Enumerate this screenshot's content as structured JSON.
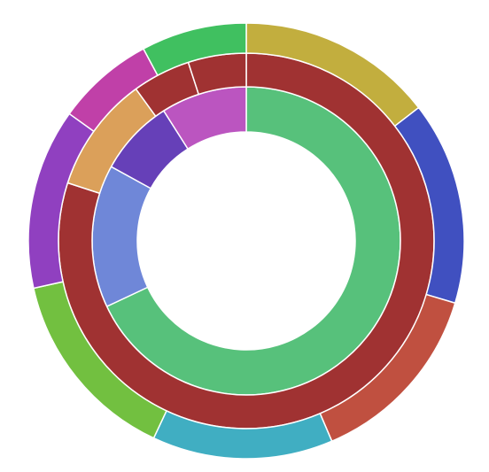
{
  "chart_data": {
    "type": "sunburst",
    "title": "",
    "direction": "clockwise",
    "start_angle_deg": 0,
    "legend": "none",
    "rings": [
      {
        "level": 1,
        "segments": [
          {
            "value": 68,
            "color": "#57c17b"
          },
          {
            "value": 15,
            "color": "#6f87d8"
          },
          {
            "value": 8,
            "color": "#6640b8"
          },
          {
            "value": 9,
            "color": "#bb55c0"
          }
        ]
      },
      {
        "level": 2,
        "segments": [
          {
            "value": 80,
            "color": "#a03232"
          },
          {
            "value": 10,
            "color": "#dba05a"
          },
          {
            "value": 5,
            "color": "#a03232"
          },
          {
            "value": 5,
            "color": "#a03232"
          }
        ]
      },
      {
        "level": 3,
        "segments": [
          {
            "value": 13,
            "color": "#c2ae3e"
          },
          {
            "value": 13.5,
            "color": "#4050c0"
          },
          {
            "value": 12.5,
            "color": "#c05040"
          },
          {
            "value": 12,
            "color": "#40aec2"
          },
          {
            "value": 13,
            "color": "#72c040"
          },
          {
            "value": 12,
            "color": "#9040c0"
          },
          {
            "value": 6.5,
            "color": "#c040a8"
          },
          {
            "value": 7,
            "color": "#40c060"
          }
        ]
      }
    ]
  }
}
